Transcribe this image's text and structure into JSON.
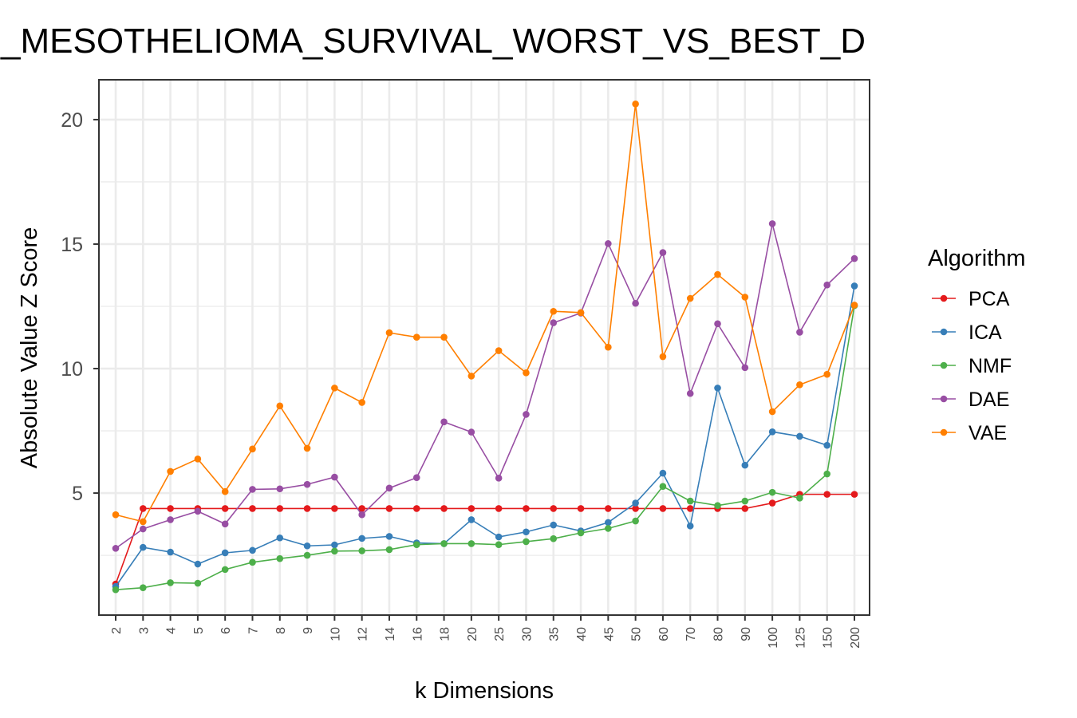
{
  "chart_data": {
    "type": "line",
    "title": "_MESOTHELIOMA_SURVIVAL_WORST_VS_BEST_D",
    "xlabel": "k Dimensions",
    "ylabel": "Absolute Value Z Score",
    "categories": [
      "2",
      "3",
      "4",
      "5",
      "6",
      "7",
      "8",
      "9",
      "10",
      "12",
      "14",
      "16",
      "18",
      "20",
      "25",
      "30",
      "35",
      "40",
      "45",
      "50",
      "60",
      "70",
      "80",
      "90",
      "100",
      "125",
      "150",
      "200"
    ],
    "y_ticks": [
      5,
      10,
      15,
      20
    ],
    "y_tick_labels": [
      "5",
      "10",
      "15",
      "20"
    ],
    "ylim": [
      0.1,
      21.6
    ],
    "grid": true,
    "legend_title": "Algorithm",
    "legend_position": "right",
    "series": [
      {
        "name": "PCA",
        "color": "#e41a1c",
        "values": [
          1.35,
          4.38,
          4.38,
          4.38,
          4.38,
          4.38,
          4.38,
          4.38,
          4.38,
          4.38,
          4.38,
          4.38,
          4.38,
          4.38,
          4.38,
          4.38,
          4.38,
          4.38,
          4.38,
          4.38,
          4.38,
          4.38,
          4.38,
          4.38,
          4.6,
          4.95,
          4.95,
          4.95
        ]
      },
      {
        "name": "ICA",
        "color": "#377eb8",
        "values": [
          1.25,
          2.82,
          2.63,
          2.15,
          2.6,
          2.7,
          3.2,
          2.88,
          2.92,
          3.18,
          3.26,
          3.0,
          2.97,
          3.93,
          3.24,
          3.44,
          3.72,
          3.48,
          3.82,
          4.6,
          5.8,
          3.68,
          9.22,
          6.12,
          7.46,
          7.28,
          6.92,
          13.32
        ]
      },
      {
        "name": "NMF",
        "color": "#4daf4a",
        "values": [
          1.12,
          1.2,
          1.4,
          1.38,
          1.93,
          2.22,
          2.37,
          2.5,
          2.67,
          2.68,
          2.73,
          2.93,
          2.97,
          2.97,
          2.93,
          3.05,
          3.17,
          3.4,
          3.58,
          3.88,
          5.27,
          4.68,
          4.5,
          4.68,
          5.03,
          4.8,
          5.77,
          12.53
        ]
      },
      {
        "name": "DAE",
        "color": "#984ea3",
        "values": [
          2.78,
          3.56,
          3.93,
          4.27,
          3.76,
          5.15,
          5.17,
          5.35,
          5.64,
          4.13,
          5.2,
          5.62,
          7.86,
          7.45,
          5.6,
          8.16,
          11.84,
          12.23,
          15.02,
          12.62,
          14.66,
          9.0,
          11.8,
          10.04,
          15.82,
          11.46,
          13.36,
          14.42
        ]
      },
      {
        "name": "VAE",
        "color": "#ff7f00",
        "values": [
          4.13,
          3.85,
          5.87,
          6.37,
          5.06,
          6.77,
          8.5,
          6.8,
          9.22,
          8.64,
          11.44,
          11.26,
          11.26,
          9.7,
          10.72,
          9.83,
          12.3,
          12.25,
          10.86,
          20.63,
          10.48,
          12.82,
          13.78,
          12.87,
          8.27,
          9.35,
          9.77,
          12.55
        ]
      }
    ]
  }
}
